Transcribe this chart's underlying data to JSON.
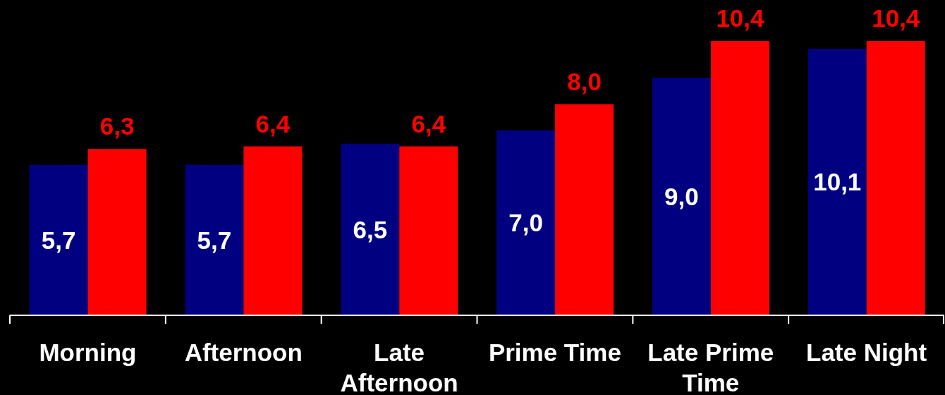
{
  "chart_data": {
    "type": "bar",
    "categories": [
      "Morning",
      "Afternoon",
      "Late Afternoon",
      "Prime Time",
      "Late Prime Time",
      "Late Night"
    ],
    "series": [
      {
        "color": "#000080",
        "values": [
          5.7,
          5.7,
          6.5,
          7.0,
          9.0,
          10.1
        ],
        "value_labels": [
          "5,7",
          "5,7",
          "6,5",
          "7,0",
          "9,0",
          "10,1"
        ]
      },
      {
        "color": "#ff0000",
        "values": [
          6.3,
          6.4,
          6.4,
          8.0,
          10.4,
          10.4
        ],
        "value_labels": [
          "6,3",
          "6,4",
          "6,4",
          "8,0",
          "10,4",
          "10,4"
        ]
      }
    ],
    "tick_labels": "x"
  }
}
